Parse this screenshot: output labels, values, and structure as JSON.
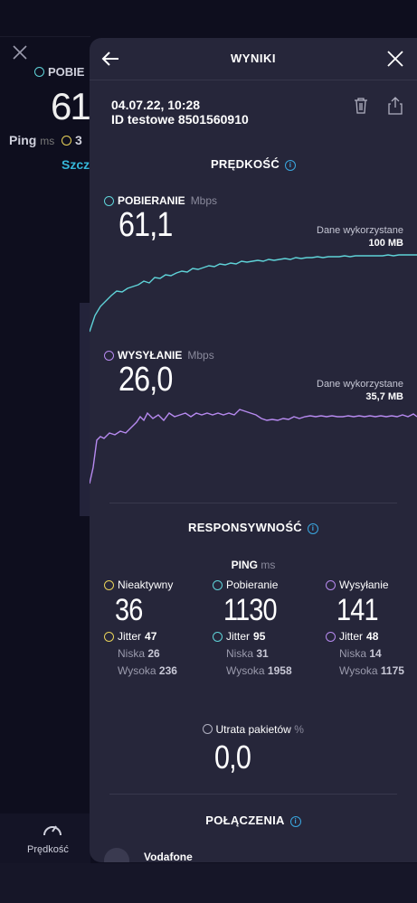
{
  "background": {
    "download_label": "POBIE",
    "download_value": "61,",
    "ping_label": "Ping",
    "ping_unit": "ms",
    "ping_partial": "3",
    "link_text": "Szcz",
    "tab_label": "Prędkość"
  },
  "header": {
    "title": "WYNIKI"
  },
  "meta": {
    "datetime": "04.07.22, 10:28",
    "test_id": "ID testowe 8501560910"
  },
  "speed": {
    "title": "PRĘDKOŚĆ",
    "download": {
      "label": "POBIERANIE",
      "unit": "Mbps",
      "value": "61,1",
      "data_used_label": "Dane wykorzystane",
      "data_used_value": "100 MB"
    },
    "upload": {
      "label": "WYSYŁANIE",
      "unit": "Mbps",
      "value": "26,0",
      "data_used_label": "Dane wykorzystane",
      "data_used_value": "35,7 MB"
    }
  },
  "responsiveness": {
    "title": "RESPONSYWNOŚĆ",
    "ping_label": "PING",
    "ping_unit": "ms",
    "columns": [
      {
        "label": "Nieaktywny",
        "value": "36",
        "jitter_label": "Jitter",
        "jitter": "47",
        "low_label": "Niska",
        "low": "26",
        "high_label": "Wysoka",
        "high": "236",
        "color": "#e8d25a"
      },
      {
        "label": "Pobieranie",
        "value": "1130",
        "jitter_label": "Jitter",
        "jitter": "95",
        "low_label": "Niska",
        "low": "31",
        "high_label": "Wysoka",
        "high": "1958",
        "color": "#5fd3d8"
      },
      {
        "label": "Wysyłanie",
        "value": "141",
        "jitter_label": "Jitter",
        "jitter": "48",
        "low_label": "Niska",
        "low": "14",
        "high_label": "Wysoka",
        "high": "1175",
        "color": "#b78af0"
      }
    ],
    "packet_loss_label": "Utrata pakietów",
    "packet_loss_unit": "%",
    "packet_loss_value": "0,0"
  },
  "connections": {
    "title": "POŁĄCZENIA",
    "provider": "Vodafone"
  },
  "colors": {
    "download": "#5fd3d8",
    "upload": "#b78af0",
    "info": "#3aa7e0",
    "sheet": "#26263a"
  }
}
